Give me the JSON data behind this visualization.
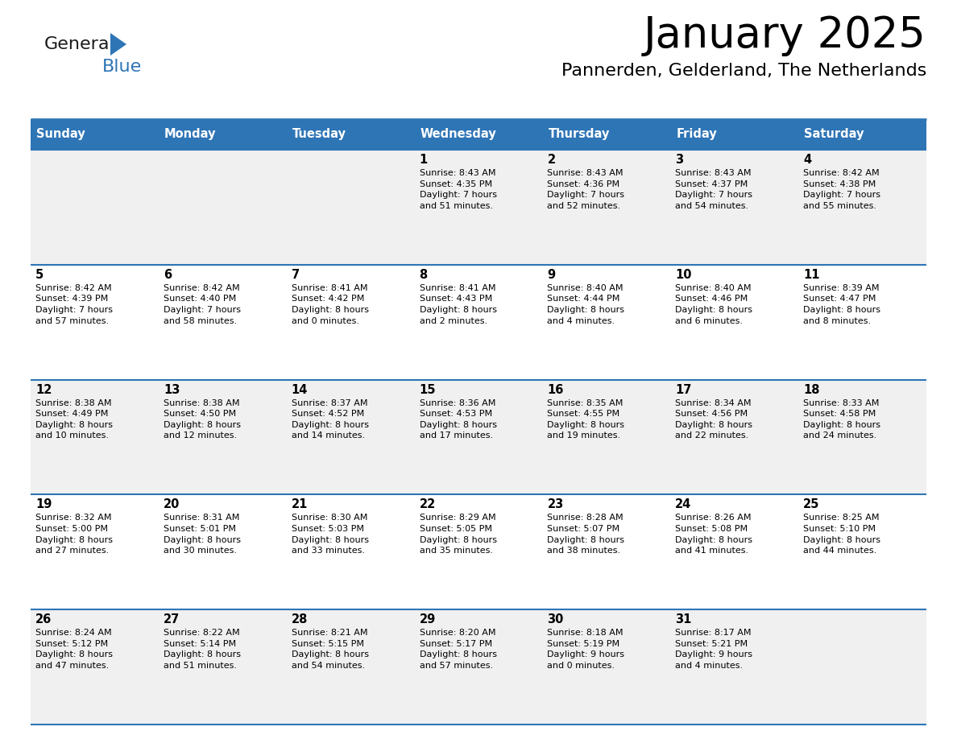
{
  "title": "January 2025",
  "subtitle": "Pannerden, Gelderland, The Netherlands",
  "header_bg": "#2e75b6",
  "header_text_color": "#ffffff",
  "days_of_week": [
    "Sunday",
    "Monday",
    "Tuesday",
    "Wednesday",
    "Thursday",
    "Friday",
    "Saturday"
  ],
  "weeks": [
    [
      {
        "day": "",
        "info": ""
      },
      {
        "day": "",
        "info": ""
      },
      {
        "day": "",
        "info": ""
      },
      {
        "day": "1",
        "info": "Sunrise: 8:43 AM\nSunset: 4:35 PM\nDaylight: 7 hours\nand 51 minutes."
      },
      {
        "day": "2",
        "info": "Sunrise: 8:43 AM\nSunset: 4:36 PM\nDaylight: 7 hours\nand 52 minutes."
      },
      {
        "day": "3",
        "info": "Sunrise: 8:43 AM\nSunset: 4:37 PM\nDaylight: 7 hours\nand 54 minutes."
      },
      {
        "day": "4",
        "info": "Sunrise: 8:42 AM\nSunset: 4:38 PM\nDaylight: 7 hours\nand 55 minutes."
      }
    ],
    [
      {
        "day": "5",
        "info": "Sunrise: 8:42 AM\nSunset: 4:39 PM\nDaylight: 7 hours\nand 57 minutes."
      },
      {
        "day": "6",
        "info": "Sunrise: 8:42 AM\nSunset: 4:40 PM\nDaylight: 7 hours\nand 58 minutes."
      },
      {
        "day": "7",
        "info": "Sunrise: 8:41 AM\nSunset: 4:42 PM\nDaylight: 8 hours\nand 0 minutes."
      },
      {
        "day": "8",
        "info": "Sunrise: 8:41 AM\nSunset: 4:43 PM\nDaylight: 8 hours\nand 2 minutes."
      },
      {
        "day": "9",
        "info": "Sunrise: 8:40 AM\nSunset: 4:44 PM\nDaylight: 8 hours\nand 4 minutes."
      },
      {
        "day": "10",
        "info": "Sunrise: 8:40 AM\nSunset: 4:46 PM\nDaylight: 8 hours\nand 6 minutes."
      },
      {
        "day": "11",
        "info": "Sunrise: 8:39 AM\nSunset: 4:47 PM\nDaylight: 8 hours\nand 8 minutes."
      }
    ],
    [
      {
        "day": "12",
        "info": "Sunrise: 8:38 AM\nSunset: 4:49 PM\nDaylight: 8 hours\nand 10 minutes."
      },
      {
        "day": "13",
        "info": "Sunrise: 8:38 AM\nSunset: 4:50 PM\nDaylight: 8 hours\nand 12 minutes."
      },
      {
        "day": "14",
        "info": "Sunrise: 8:37 AM\nSunset: 4:52 PM\nDaylight: 8 hours\nand 14 minutes."
      },
      {
        "day": "15",
        "info": "Sunrise: 8:36 AM\nSunset: 4:53 PM\nDaylight: 8 hours\nand 17 minutes."
      },
      {
        "day": "16",
        "info": "Sunrise: 8:35 AM\nSunset: 4:55 PM\nDaylight: 8 hours\nand 19 minutes."
      },
      {
        "day": "17",
        "info": "Sunrise: 8:34 AM\nSunset: 4:56 PM\nDaylight: 8 hours\nand 22 minutes."
      },
      {
        "day": "18",
        "info": "Sunrise: 8:33 AM\nSunset: 4:58 PM\nDaylight: 8 hours\nand 24 minutes."
      }
    ],
    [
      {
        "day": "19",
        "info": "Sunrise: 8:32 AM\nSunset: 5:00 PM\nDaylight: 8 hours\nand 27 minutes."
      },
      {
        "day": "20",
        "info": "Sunrise: 8:31 AM\nSunset: 5:01 PM\nDaylight: 8 hours\nand 30 minutes."
      },
      {
        "day": "21",
        "info": "Sunrise: 8:30 AM\nSunset: 5:03 PM\nDaylight: 8 hours\nand 33 minutes."
      },
      {
        "day": "22",
        "info": "Sunrise: 8:29 AM\nSunset: 5:05 PM\nDaylight: 8 hours\nand 35 minutes."
      },
      {
        "day": "23",
        "info": "Sunrise: 8:28 AM\nSunset: 5:07 PM\nDaylight: 8 hours\nand 38 minutes."
      },
      {
        "day": "24",
        "info": "Sunrise: 8:26 AM\nSunset: 5:08 PM\nDaylight: 8 hours\nand 41 minutes."
      },
      {
        "day": "25",
        "info": "Sunrise: 8:25 AM\nSunset: 5:10 PM\nDaylight: 8 hours\nand 44 minutes."
      }
    ],
    [
      {
        "day": "26",
        "info": "Sunrise: 8:24 AM\nSunset: 5:12 PM\nDaylight: 8 hours\nand 47 minutes."
      },
      {
        "day": "27",
        "info": "Sunrise: 8:22 AM\nSunset: 5:14 PM\nDaylight: 8 hours\nand 51 minutes."
      },
      {
        "day": "28",
        "info": "Sunrise: 8:21 AM\nSunset: 5:15 PM\nDaylight: 8 hours\nand 54 minutes."
      },
      {
        "day": "29",
        "info": "Sunrise: 8:20 AM\nSunset: 5:17 PM\nDaylight: 8 hours\nand 57 minutes."
      },
      {
        "day": "30",
        "info": "Sunrise: 8:18 AM\nSunset: 5:19 PM\nDaylight: 9 hours\nand 0 minutes."
      },
      {
        "day": "31",
        "info": "Sunrise: 8:17 AM\nSunset: 5:21 PM\nDaylight: 9 hours\nand 4 minutes."
      },
      {
        "day": "",
        "info": ""
      }
    ]
  ],
  "cell_bg_even": "#f0f0f0",
  "cell_bg_odd": "#ffffff",
  "cell_border_color": "#2e75b6",
  "text_color": "#000000",
  "logo_general_color": "#1a1a1a",
  "logo_blue_color": "#2e75b6",
  "fig_width": 11.88,
  "fig_height": 9.18,
  "dpi": 100
}
